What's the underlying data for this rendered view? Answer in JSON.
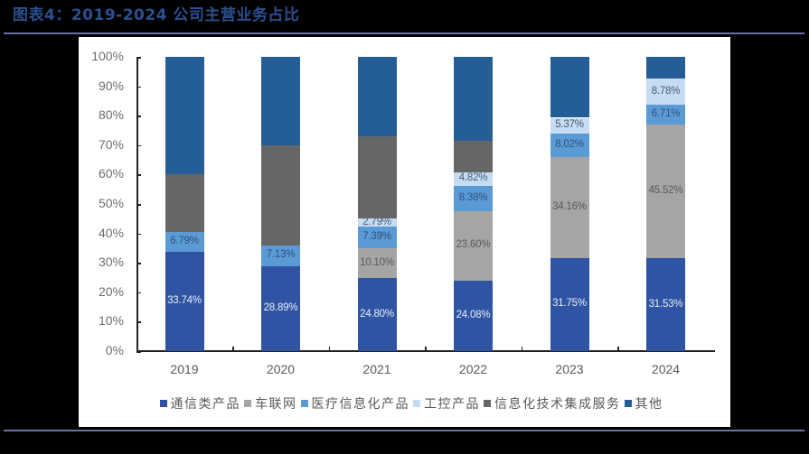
{
  "header": {
    "title": "图表4：2019-2024 公司主营业务占比"
  },
  "colors": {
    "background": "#000000",
    "title": "#2a4f8f",
    "rule": "#6b6fa8",
    "panel": "#ffffff"
  },
  "chart_data": {
    "type": "bar",
    "stacked": true,
    "title": "2019-2024 公司主营业务占比",
    "xlabel": "",
    "ylabel": "",
    "ylim": [
      0,
      100
    ],
    "yticks": [
      "0%",
      "10%",
      "20%",
      "30%",
      "40%",
      "50%",
      "60%",
      "70%",
      "80%",
      "90%",
      "100%"
    ],
    "categories": [
      "2019",
      "2020",
      "2021",
      "2022",
      "2023",
      "2024"
    ],
    "legend_position": "bottom",
    "grid": false,
    "series": [
      {
        "name": "通信类产品",
        "color": "#2e54a3",
        "label_color": "#e8eefa",
        "values": [
          33.74,
          28.89,
          24.8,
          24.08,
          31.75,
          31.53
        ],
        "labels": [
          "33.74%",
          "28.89%",
          "24.80%",
          "24.08%",
          "31.75%",
          "31.53%"
        ]
      },
      {
        "name": "车联网",
        "color": "#a5a5a5",
        "label_color": "#5a5a5a",
        "values": [
          0,
          0,
          10.1,
          23.6,
          34.16,
          45.52
        ],
        "labels": [
          "",
          "",
          "10.10%",
          "23.60%",
          "34.16%",
          "45.52%"
        ]
      },
      {
        "name": "医疗信息化产品",
        "color": "#5b9bd5",
        "label_color": "#2f4f7f",
        "values": [
          6.79,
          7.13,
          7.39,
          8.38,
          8.02,
          6.71
        ],
        "labels": [
          "6.79%",
          "7.13%",
          "7.39%",
          "8.38%",
          "8.02%",
          "6.71%"
        ]
      },
      {
        "name": "工控产品",
        "color": "#c6dcf2",
        "label_color": "#4a5a70",
        "values": [
          0,
          0,
          2.79,
          4.82,
          5.37,
          8.78
        ],
        "labels": [
          "",
          "",
          "2.79%",
          "4.82%",
          "5.37%",
          "8.78%"
        ]
      },
      {
        "name": "信息化技术集成服务",
        "color": "#666666",
        "label_color": "#ffffff",
        "values": [
          19.5,
          34.0,
          27.9,
          10.6,
          0.0,
          0.0
        ],
        "labels": [
          "",
          "",
          "",
          "",
          "",
          ""
        ]
      },
      {
        "name": "其他",
        "color": "#255e96",
        "label_color": "#ffffff",
        "values": [
          39.97,
          29.98,
          27.02,
          28.52,
          20.7,
          7.46
        ],
        "labels": [
          "",
          "",
          "",
          "",
          "",
          ""
        ]
      }
    ]
  },
  "legend": {
    "items": [
      "通信类产品",
      "车联网",
      "医疗信息化产品",
      "工控产品",
      "信息化技术集成服务",
      "其他"
    ]
  }
}
